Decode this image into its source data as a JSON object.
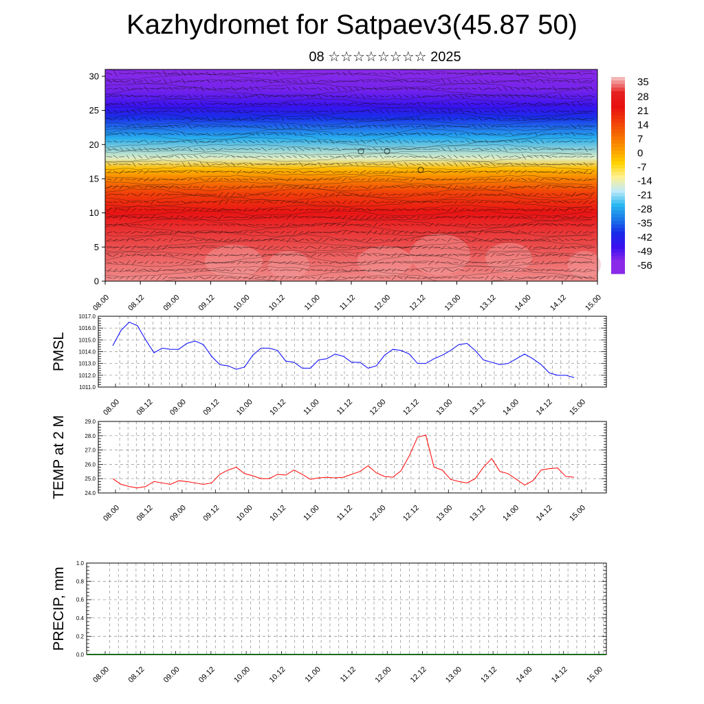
{
  "title": "Kazhydromet for Satpaev3(45.87 50)",
  "subtitle": "08 ☆☆☆☆☆☆☆☆ 2025",
  "colors": {
    "pmsl_line": "#0000ff",
    "temp_line": "#ff0000",
    "precip_line": "#1a6b1a",
    "grid": "#888888"
  },
  "chart_data": [
    {
      "type": "heatmap",
      "name": "vertical-section",
      "x_ticks": [
        "08.00",
        "08.12",
        "09.00",
        "09.12",
        "10.00",
        "10.12",
        "11.00",
        "11.12",
        "12.00",
        "12.12",
        "13.00",
        "13.12",
        "14.00",
        "14.12",
        "15.00"
      ],
      "y_ticks": [
        0,
        5,
        10,
        15,
        20,
        25,
        30
      ],
      "ylim": [
        0,
        31
      ],
      "colorbar_labels": [
        "35",
        "28",
        "21",
        "14",
        "7",
        "0",
        "-7",
        "-14",
        "-21",
        "-28",
        "-35",
        "-42",
        "-49",
        "-56"
      ],
      "colorbar_colors": [
        "#f5b5b5",
        "#e62020",
        "#e81010",
        "#f03b0a",
        "#f56a00",
        "#fb9a00",
        "#ffd200",
        "#fff090",
        "#bfeaf8",
        "#2ab8f0",
        "#1a78e8",
        "#1a2ae8",
        "#3a10f0",
        "#8a2ae8"
      ],
      "value_profile": [
        {
          "z": 0,
          "v": 33
        },
        {
          "z": 5,
          "v": 30
        },
        {
          "z": 10,
          "v": 22
        },
        {
          "z": 13,
          "v": 12
        },
        {
          "z": 15,
          "v": 2
        },
        {
          "z": 16.5,
          "v": -6
        },
        {
          "z": 18,
          "v": -20
        },
        {
          "z": 21,
          "v": -32
        },
        {
          "z": 24,
          "v": -45
        },
        {
          "z": 25.5,
          "v": -52
        },
        {
          "z": 28,
          "v": -58
        },
        {
          "z": 31,
          "v": -60
        }
      ]
    },
    {
      "type": "line",
      "name": "pmsl",
      "ylabel": "PMSL",
      "ylim": [
        1011,
        1017
      ],
      "y_ticks": [
        "1011.0",
        "1012.0",
        "1013.0",
        "1014.0",
        "1015.0",
        "1016.0",
        "1017.0"
      ],
      "x_ticks": [
        "08.00",
        "08.12",
        "09.00",
        "09.12",
        "10.00",
        "10.12",
        "11.00",
        "11.12",
        "12.00",
        "12.12",
        "13.00",
        "13.12",
        "14.00",
        "14.12",
        "15.00"
      ],
      "values": [
        1014.5,
        1015.8,
        1016.5,
        1016.2,
        1015.0,
        1013.9,
        1014.3,
        1014.2,
        1014.2,
        1014.7,
        1014.9,
        1014.6,
        1013.6,
        1012.9,
        1012.8,
        1012.5,
        1012.7,
        1013.7,
        1014.3,
        1014.3,
        1014.1,
        1013.2,
        1013.1,
        1012.6,
        1012.6,
        1013.3,
        1013.4,
        1013.8,
        1013.6,
        1013.1,
        1013.1,
        1012.6,
        1012.8,
        1013.7,
        1014.2,
        1014.1,
        1013.8,
        1013.0,
        1013.0,
        1013.4,
        1013.7,
        1014.1,
        1014.6,
        1014.7,
        1014.1,
        1013.3,
        1013.1,
        1012.9,
        1013.0,
        1013.4,
        1013.8,
        1013.4,
        1012.9,
        1012.2,
        1012.0,
        1012.0,
        1011.8
      ]
    },
    {
      "type": "line",
      "name": "temp",
      "ylabel": "TEMP at 2 M",
      "ylim": [
        24,
        29
      ],
      "y_ticks": [
        "24.0",
        "25.0",
        "26.0",
        "27.0",
        "28.0",
        "29.0"
      ],
      "x_ticks": [
        "08.00",
        "08.12",
        "09.00",
        "09.12",
        "10.00",
        "10.12",
        "11.00",
        "11.12",
        "12.00",
        "12.12",
        "13.00",
        "13.12",
        "14.00",
        "14.12",
        "15.00"
      ],
      "values": [
        25.0,
        24.6,
        24.45,
        24.35,
        24.45,
        24.8,
        24.7,
        24.6,
        24.85,
        24.8,
        24.7,
        24.6,
        24.7,
        25.3,
        25.6,
        25.8,
        25.35,
        25.2,
        25.0,
        25.0,
        25.3,
        25.25,
        25.6,
        25.3,
        24.95,
        25.05,
        25.1,
        25.05,
        25.1,
        25.3,
        25.5,
        25.9,
        25.4,
        25.15,
        25.1,
        25.55,
        26.6,
        27.9,
        28.05,
        25.8,
        25.6,
        24.95,
        24.8,
        24.7,
        25.0,
        25.8,
        26.4,
        25.5,
        25.35,
        24.95,
        24.55,
        24.85,
        25.6,
        25.7,
        25.75,
        25.15,
        25.1
      ]
    },
    {
      "type": "line",
      "name": "precip",
      "ylabel": "PRECIP, mm",
      "ylim": [
        0,
        1
      ],
      "y_ticks": [
        "0.0",
        "0.2",
        "0.4",
        "0.6",
        "0.8",
        "1.0"
      ],
      "x_ticks": [
        "08.00",
        "08.12",
        "09.00",
        "09.12",
        "10.00",
        "10.12",
        "11.00",
        "11.12",
        "12.00",
        "12.12",
        "13.00",
        "13.12",
        "14.00",
        "14.12",
        "15.00"
      ],
      "values": [
        0,
        0,
        0,
        0,
        0,
        0,
        0,
        0,
        0,
        0,
        0,
        0,
        0,
        0,
        0,
        0,
        0,
        0,
        0,
        0,
        0,
        0,
        0,
        0,
        0,
        0,
        0,
        0,
        0,
        0,
        0,
        0,
        0,
        0,
        0,
        0,
        0,
        0,
        0,
        0,
        0,
        0,
        0,
        0,
        0,
        0,
        0,
        0,
        0,
        0,
        0,
        0,
        0,
        0,
        0,
        0,
        0
      ]
    }
  ]
}
